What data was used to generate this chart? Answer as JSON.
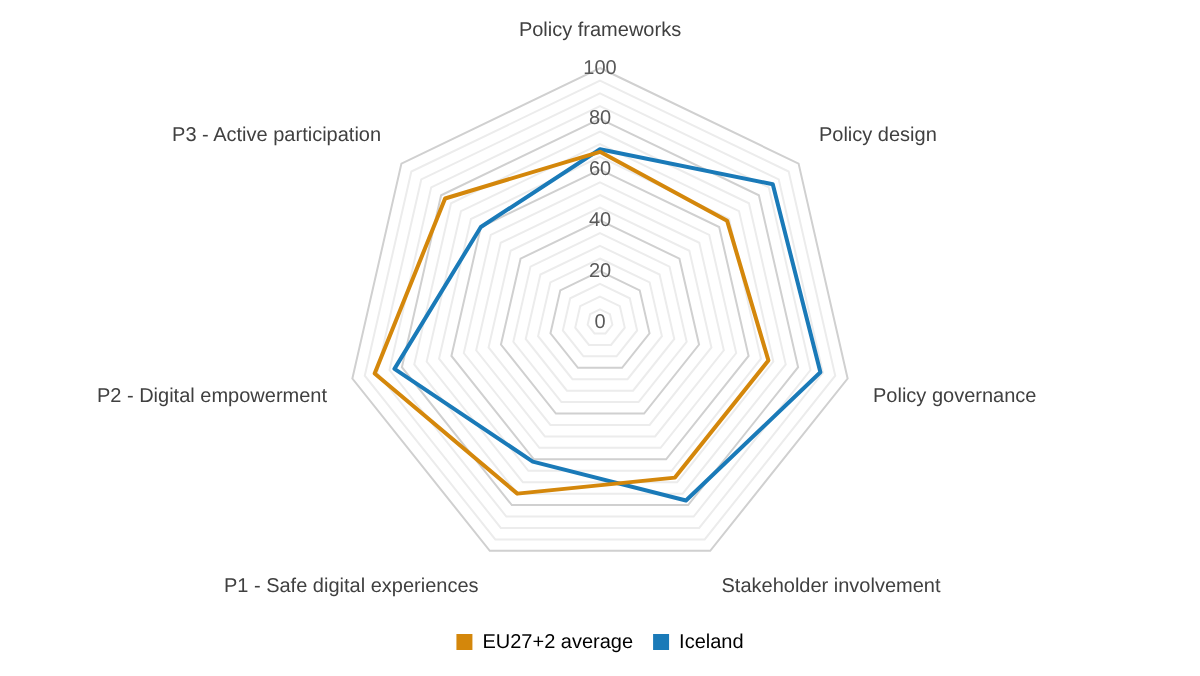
{
  "chart_data": {
    "type": "radar",
    "categories": [
      "Policy frameworks",
      "Policy design",
      "Policy governance",
      "Stakeholder involvement",
      "P1 - Safe digital experiences",
      "P2 - Digital empowerment",
      "P3 - Active participation"
    ],
    "series": [
      {
        "name": "EU27+2 average",
        "color": "#d4870b",
        "values": [
          67,
          64,
          68,
          68,
          75,
          91,
          78
        ]
      },
      {
        "name": "Iceland",
        "color": "#1a7ab8",
        "values": [
          68,
          87,
          89,
          78,
          61,
          83,
          60
        ]
      }
    ],
    "ylim": [
      0,
      100
    ],
    "yticks": [
      0,
      20,
      40,
      60,
      80,
      100
    ],
    "grid": true,
    "legend": "bottom",
    "marker": "none"
  }
}
